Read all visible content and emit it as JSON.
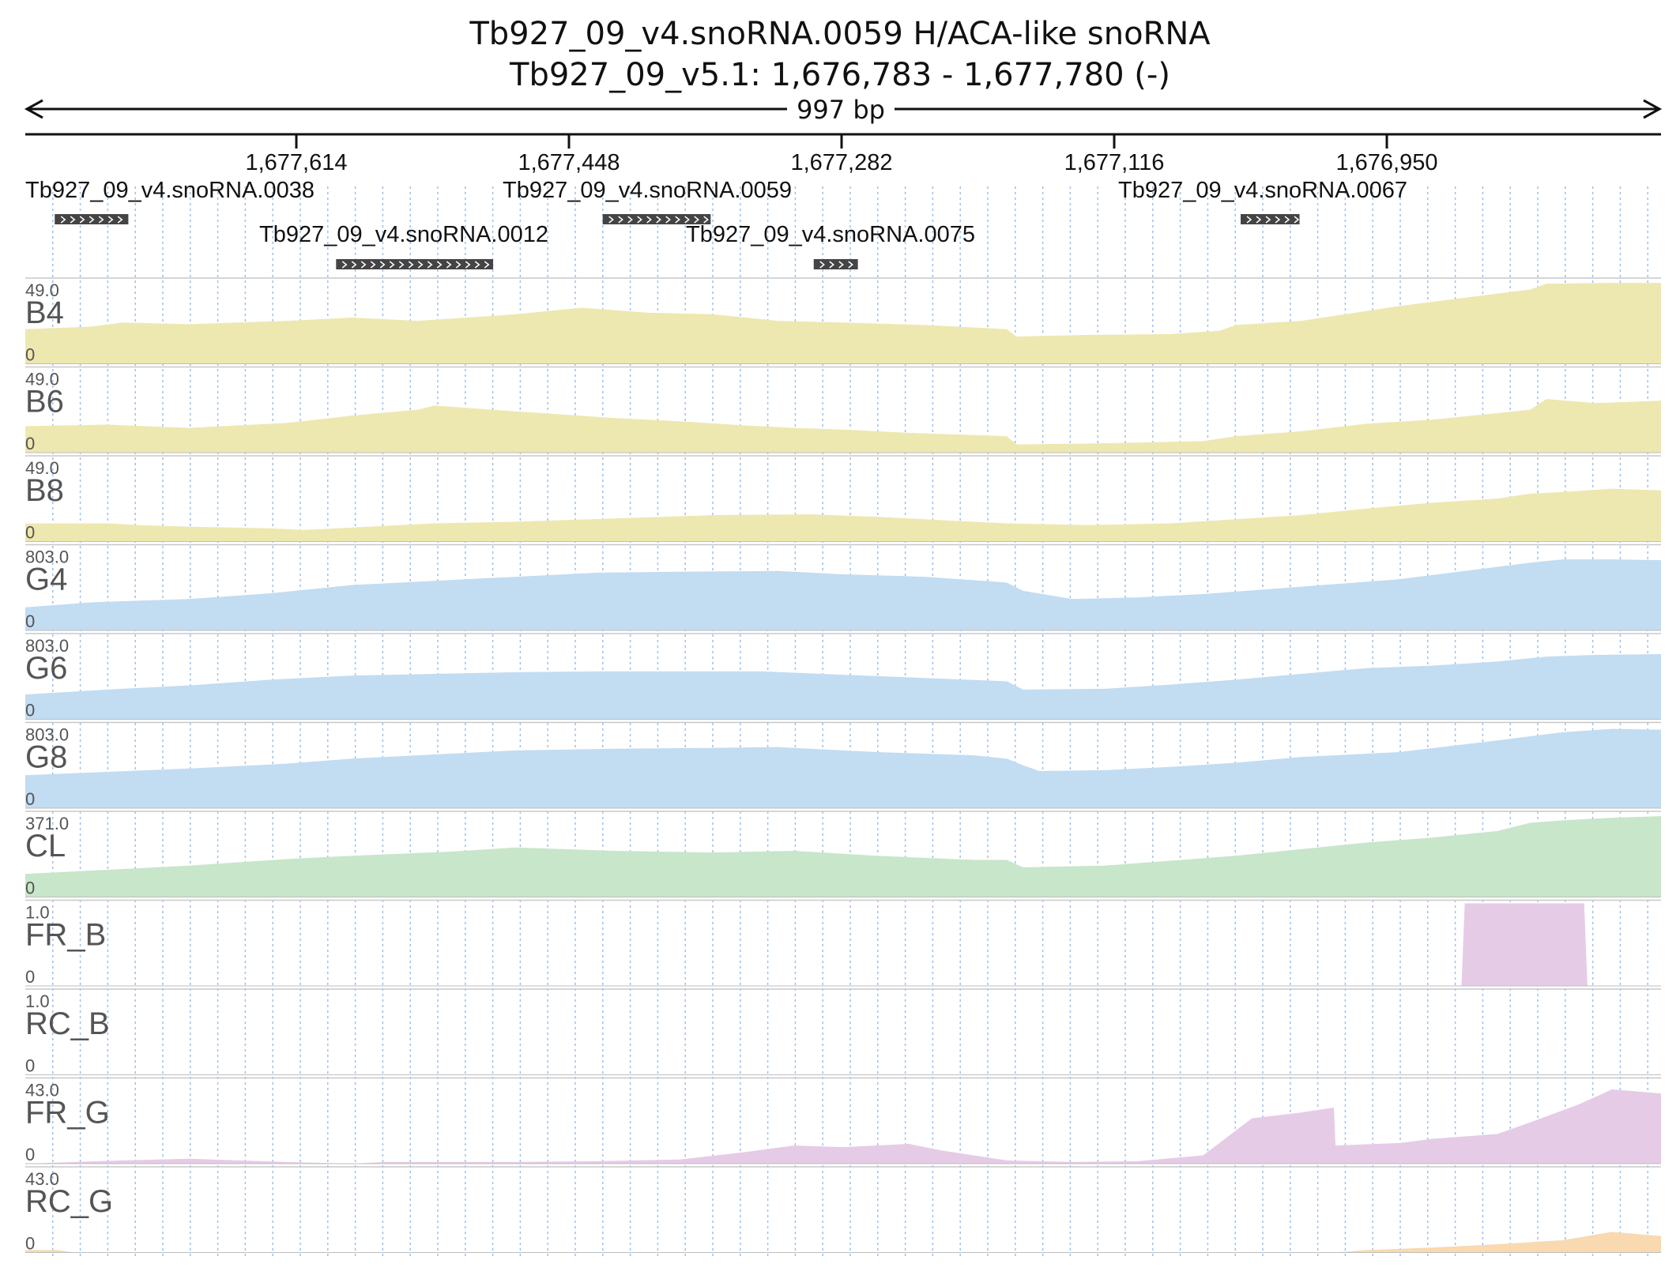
{
  "title": {
    "line1": "Tb927_09_v4.snoRNA.0059  H/ACA-like snoRNA",
    "line2": "Tb927_09_v5.1: 1,676,783 - 1,677,780 (-)"
  },
  "ruler": {
    "span_label": "997 bp"
  },
  "chart_data": {
    "type": "area",
    "region": {
      "chromosome": "Tb927_09_v5.1",
      "start": 1676783,
      "end": 1677780,
      "strand": "-",
      "length_bp": 997
    },
    "x_axis": {
      "ticks": [
        "1,677,614",
        "1,677,448",
        "1,677,282",
        "1,677,116",
        "1,676,950"
      ],
      "reversed": true
    },
    "features": [
      {
        "name": "Tb927_09_v4.snoRNA.0038",
        "start_frac": 0.018,
        "end_frac": 0.063
      },
      {
        "name": "Tb927_09_v4.snoRNA.0012",
        "start_frac": 0.19,
        "end_frac": 0.286
      },
      {
        "name": "Tb927_09_v4.snoRNA.0059",
        "start_frac": 0.353,
        "end_frac": 0.419
      },
      {
        "name": "Tb927_09_v4.snoRNA.0075",
        "start_frac": 0.482,
        "end_frac": 0.509
      },
      {
        "name": "Tb927_09_v4.snoRNA.0067",
        "start_frac": 0.743,
        "end_frac": 0.779
      }
    ],
    "series": [
      {
        "name": "B4",
        "max_label": "49.0",
        "min_label": "0",
        "color": "#ede8b0",
        "values": [
          [
            0.0,
            0.42
          ],
          [
            0.04,
            0.45
          ],
          [
            0.06,
            0.5
          ],
          [
            0.1,
            0.48
          ],
          [
            0.16,
            0.52
          ],
          [
            0.2,
            0.56
          ],
          [
            0.24,
            0.52
          ],
          [
            0.3,
            0.6
          ],
          [
            0.34,
            0.68
          ],
          [
            0.38,
            0.62
          ],
          [
            0.42,
            0.6
          ],
          [
            0.46,
            0.52
          ],
          [
            0.5,
            0.5
          ],
          [
            0.55,
            0.47
          ],
          [
            0.6,
            0.42
          ],
          [
            0.606,
            0.33
          ],
          [
            0.65,
            0.35
          ],
          [
            0.7,
            0.36
          ],
          [
            0.73,
            0.4
          ],
          [
            0.74,
            0.47
          ],
          [
            0.78,
            0.52
          ],
          [
            0.8,
            0.58
          ],
          [
            0.84,
            0.7
          ],
          [
            0.88,
            0.8
          ],
          [
            0.92,
            0.9
          ],
          [
            0.93,
            0.97
          ],
          [
            0.97,
            0.98
          ],
          [
            1.0,
            0.98
          ]
        ]
      },
      {
        "name": "B6",
        "max_label": "49.0",
        "min_label": "0",
        "color": "#ede8b0",
        "values": [
          [
            0.0,
            0.32
          ],
          [
            0.05,
            0.34
          ],
          [
            0.1,
            0.3
          ],
          [
            0.16,
            0.36
          ],
          [
            0.2,
            0.45
          ],
          [
            0.24,
            0.52
          ],
          [
            0.25,
            0.57
          ],
          [
            0.3,
            0.5
          ],
          [
            0.36,
            0.42
          ],
          [
            0.4,
            0.38
          ],
          [
            0.44,
            0.33
          ],
          [
            0.47,
            0.3
          ],
          [
            0.5,
            0.28
          ],
          [
            0.54,
            0.24
          ],
          [
            0.6,
            0.2
          ],
          [
            0.606,
            0.1
          ],
          [
            0.65,
            0.11
          ],
          [
            0.72,
            0.14
          ],
          [
            0.74,
            0.2
          ],
          [
            0.78,
            0.26
          ],
          [
            0.82,
            0.35
          ],
          [
            0.86,
            0.4
          ],
          [
            0.9,
            0.48
          ],
          [
            0.92,
            0.52
          ],
          [
            0.93,
            0.65
          ],
          [
            0.96,
            0.6
          ],
          [
            1.0,
            0.63
          ]
        ]
      },
      {
        "name": "B8",
        "max_label": "49.0",
        "min_label": "0",
        "color": "#ede8b0",
        "values": [
          [
            0.0,
            0.22
          ],
          [
            0.05,
            0.22
          ],
          [
            0.07,
            0.2
          ],
          [
            0.1,
            0.18
          ],
          [
            0.15,
            0.16
          ],
          [
            0.17,
            0.14
          ],
          [
            0.2,
            0.17
          ],
          [
            0.25,
            0.22
          ],
          [
            0.3,
            0.24
          ],
          [
            0.36,
            0.28
          ],
          [
            0.42,
            0.32
          ],
          [
            0.48,
            0.33
          ],
          [
            0.52,
            0.3
          ],
          [
            0.56,
            0.26
          ],
          [
            0.6,
            0.22
          ],
          [
            0.65,
            0.2
          ],
          [
            0.7,
            0.22
          ],
          [
            0.74,
            0.27
          ],
          [
            0.78,
            0.32
          ],
          [
            0.82,
            0.4
          ],
          [
            0.86,
            0.47
          ],
          [
            0.9,
            0.52
          ],
          [
            0.92,
            0.58
          ],
          [
            0.94,
            0.6
          ],
          [
            0.97,
            0.64
          ],
          [
            1.0,
            0.62
          ]
        ]
      },
      {
        "name": "G4",
        "max_label": "803.0",
        "min_label": "0",
        "color": "#c2dcf2",
        "values": [
          [
            0.0,
            0.28
          ],
          [
            0.04,
            0.34
          ],
          [
            0.1,
            0.38
          ],
          [
            0.15,
            0.45
          ],
          [
            0.2,
            0.55
          ],
          [
            0.25,
            0.6
          ],
          [
            0.3,
            0.65
          ],
          [
            0.35,
            0.7
          ],
          [
            0.4,
            0.71
          ],
          [
            0.46,
            0.72
          ],
          [
            0.5,
            0.68
          ],
          [
            0.55,
            0.65
          ],
          [
            0.6,
            0.58
          ],
          [
            0.61,
            0.48
          ],
          [
            0.64,
            0.38
          ],
          [
            0.68,
            0.4
          ],
          [
            0.72,
            0.44
          ],
          [
            0.76,
            0.5
          ],
          [
            0.8,
            0.56
          ],
          [
            0.84,
            0.62
          ],
          [
            0.88,
            0.72
          ],
          [
            0.92,
            0.82
          ],
          [
            0.94,
            0.86
          ],
          [
            0.97,
            0.86
          ],
          [
            1.0,
            0.85
          ]
        ]
      },
      {
        "name": "G6",
        "max_label": "803.0",
        "min_label": "0",
        "color": "#c2dcf2",
        "values": [
          [
            0.0,
            0.3
          ],
          [
            0.05,
            0.36
          ],
          [
            0.1,
            0.41
          ],
          [
            0.15,
            0.48
          ],
          [
            0.2,
            0.53
          ],
          [
            0.25,
            0.55
          ],
          [
            0.3,
            0.57
          ],
          [
            0.35,
            0.58
          ],
          [
            0.4,
            0.58
          ],
          [
            0.45,
            0.58
          ],
          [
            0.5,
            0.54
          ],
          [
            0.55,
            0.5
          ],
          [
            0.6,
            0.46
          ],
          [
            0.61,
            0.36
          ],
          [
            0.66,
            0.37
          ],
          [
            0.7,
            0.42
          ],
          [
            0.74,
            0.48
          ],
          [
            0.78,
            0.55
          ],
          [
            0.82,
            0.62
          ],
          [
            0.86,
            0.65
          ],
          [
            0.9,
            0.7
          ],
          [
            0.93,
            0.76
          ],
          [
            0.96,
            0.78
          ],
          [
            1.0,
            0.79
          ]
        ]
      },
      {
        "name": "G8",
        "max_label": "803.0",
        "min_label": "0",
        "color": "#c2dcf2",
        "values": [
          [
            0.0,
            0.4
          ],
          [
            0.05,
            0.44
          ],
          [
            0.1,
            0.48
          ],
          [
            0.16,
            0.54
          ],
          [
            0.2,
            0.6
          ],
          [
            0.26,
            0.66
          ],
          [
            0.3,
            0.7
          ],
          [
            0.36,
            0.72
          ],
          [
            0.42,
            0.73
          ],
          [
            0.46,
            0.74
          ],
          [
            0.52,
            0.68
          ],
          [
            0.58,
            0.64
          ],
          [
            0.6,
            0.6
          ],
          [
            0.61,
            0.52
          ],
          [
            0.62,
            0.45
          ],
          [
            0.66,
            0.46
          ],
          [
            0.7,
            0.5
          ],
          [
            0.74,
            0.55
          ],
          [
            0.78,
            0.62
          ],
          [
            0.84,
            0.68
          ],
          [
            0.9,
            0.82
          ],
          [
            0.94,
            0.92
          ],
          [
            0.97,
            0.96
          ],
          [
            1.0,
            0.95
          ]
        ]
      },
      {
        "name": "CL",
        "max_label": "371.0",
        "min_label": "0",
        "color": "#c8e6c9",
        "values": [
          [
            0.0,
            0.28
          ],
          [
            0.04,
            0.32
          ],
          [
            0.1,
            0.38
          ],
          [
            0.16,
            0.46
          ],
          [
            0.2,
            0.5
          ],
          [
            0.26,
            0.55
          ],
          [
            0.3,
            0.6
          ],
          [
            0.36,
            0.56
          ],
          [
            0.42,
            0.54
          ],
          [
            0.47,
            0.56
          ],
          [
            0.52,
            0.5
          ],
          [
            0.58,
            0.45
          ],
          [
            0.6,
            0.45
          ],
          [
            0.61,
            0.36
          ],
          [
            0.66,
            0.38
          ],
          [
            0.7,
            0.44
          ],
          [
            0.74,
            0.5
          ],
          [
            0.78,
            0.58
          ],
          [
            0.82,
            0.66
          ],
          [
            0.86,
            0.72
          ],
          [
            0.9,
            0.8
          ],
          [
            0.92,
            0.9
          ],
          [
            0.94,
            0.93
          ],
          [
            0.97,
            0.96
          ],
          [
            1.0,
            0.98
          ]
        ]
      },
      {
        "name": "FR_B",
        "max_label": "1.0",
        "min_label": "0",
        "color": "#e6cbe6",
        "values": [
          [
            0.0,
            0.0
          ],
          [
            0.878,
            0.0
          ],
          [
            0.88,
            1.0
          ],
          [
            0.953,
            1.0
          ],
          [
            0.955,
            0.0
          ],
          [
            1.0,
            0.0
          ]
        ]
      },
      {
        "name": "RC_B",
        "max_label": "1.0",
        "min_label": "0",
        "color": "#e6cbe6",
        "values": [
          [
            0.0,
            0.0
          ],
          [
            1.0,
            0.0
          ]
        ]
      },
      {
        "name": "FR_G",
        "max_label": "43.0",
        "min_label": "0",
        "color": "#e6cbe6",
        "values": [
          [
            0.0,
            0.0
          ],
          [
            0.03,
            0.02
          ],
          [
            0.06,
            0.04
          ],
          [
            0.1,
            0.06
          ],
          [
            0.13,
            0.04
          ],
          [
            0.16,
            0.02
          ],
          [
            0.2,
            0.0
          ],
          [
            0.22,
            0.02
          ],
          [
            0.3,
            0.02
          ],
          [
            0.35,
            0.03
          ],
          [
            0.4,
            0.05
          ],
          [
            0.44,
            0.14
          ],
          [
            0.47,
            0.22
          ],
          [
            0.5,
            0.2
          ],
          [
            0.54,
            0.24
          ],
          [
            0.56,
            0.16
          ],
          [
            0.6,
            0.04
          ],
          [
            0.64,
            0.02
          ],
          [
            0.68,
            0.03
          ],
          [
            0.72,
            0.1
          ],
          [
            0.75,
            0.55
          ],
          [
            0.78,
            0.62
          ],
          [
            0.8,
            0.68
          ],
          [
            0.801,
            0.22
          ],
          [
            0.84,
            0.25
          ],
          [
            0.86,
            0.3
          ],
          [
            0.9,
            0.36
          ],
          [
            0.92,
            0.5
          ],
          [
            0.95,
            0.72
          ],
          [
            0.97,
            0.9
          ],
          [
            1.0,
            0.85
          ]
        ]
      },
      {
        "name": "RC_G",
        "max_label": "43.0",
        "min_label": "0",
        "color": "#f8d9b0",
        "values": [
          [
            0.0,
            0.03
          ],
          [
            0.02,
            0.03
          ],
          [
            0.03,
            0.0
          ],
          [
            0.8,
            0.0
          ],
          [
            0.82,
            0.03
          ],
          [
            0.86,
            0.06
          ],
          [
            0.9,
            0.1
          ],
          [
            0.94,
            0.15
          ],
          [
            0.97,
            0.25
          ],
          [
            1.0,
            0.2
          ]
        ]
      }
    ]
  }
}
